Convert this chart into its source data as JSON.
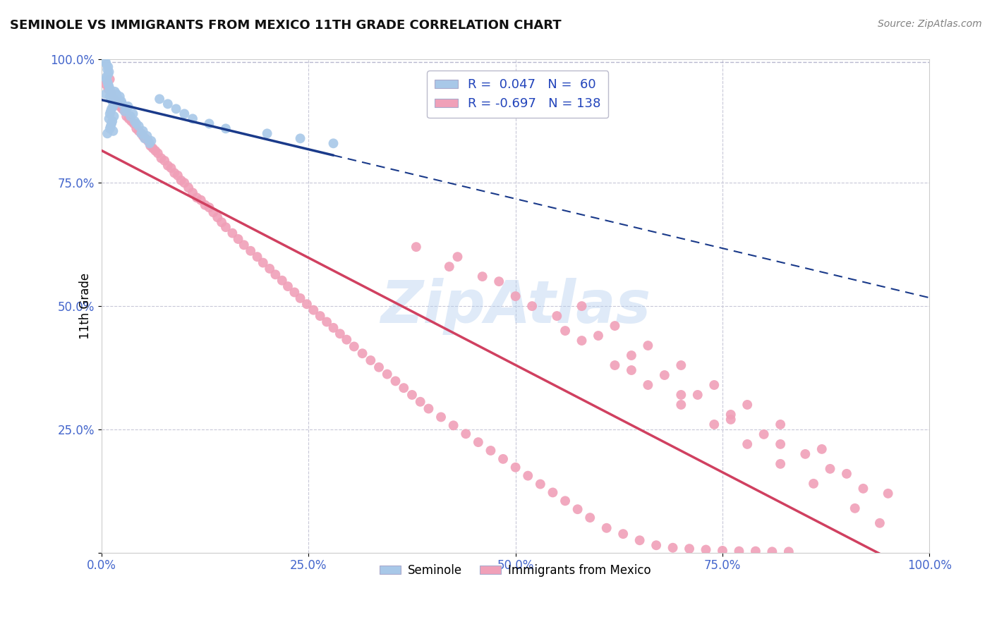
{
  "title": "SEMINOLE VS IMMIGRANTS FROM MEXICO 11TH GRADE CORRELATION CHART",
  "source": "Source: ZipAtlas.com",
  "ylabel": "11th Grade",
  "xlim": [
    0,
    1
  ],
  "ylim": [
    0,
    1
  ],
  "xticks": [
    0.0,
    0.25,
    0.5,
    0.75,
    1.0
  ],
  "xtick_labels": [
    "0.0%",
    "25.0%",
    "50.0%",
    "75.0%",
    "100.0%"
  ],
  "yticks": [
    0.0,
    0.25,
    0.5,
    0.75,
    1.0
  ],
  "ytick_labels": [
    "",
    "25.0%",
    "50.0%",
    "75.0%",
    "100.0%"
  ],
  "legend_line1": "R =  0.047   N =  60",
  "legend_line2": "R = -0.697   N = 138",
  "seminole_color": "#a8c8e8",
  "mexico_color": "#f0a0b8",
  "blue_line_color": "#1a3a8a",
  "pink_line_color": "#d04060",
  "background_color": "#ffffff",
  "grid_color": "#c8c8d8",
  "title_color": "#111111",
  "axis_tick_color": "#4466cc",
  "watermark_color": "#b0ccee",
  "seminole_x": [
    0.005,
    0.008,
    0.01,
    0.012,
    0.015,
    0.006,
    0.009,
    0.011,
    0.013,
    0.007,
    0.01,
    0.014,
    0.008,
    0.006,
    0.012,
    0.009,
    0.011,
    0.015,
    0.007,
    0.01,
    0.013,
    0.008,
    0.005,
    0.012,
    0.009,
    0.006,
    0.011,
    0.014,
    0.01,
    0.007,
    0.02,
    0.025,
    0.03,
    0.018,
    0.022,
    0.028,
    0.035,
    0.04,
    0.045,
    0.05,
    0.055,
    0.06,
    0.038,
    0.032,
    0.048,
    0.016,
    0.024,
    0.042,
    0.052,
    0.058,
    0.07,
    0.08,
    0.09,
    0.1,
    0.11,
    0.13,
    0.15,
    0.2,
    0.24,
    0.28
  ],
  "seminole_y": [
    0.93,
    0.95,
    0.94,
    0.92,
    0.91,
    0.96,
    0.945,
    0.935,
    0.915,
    0.955,
    0.925,
    0.905,
    0.97,
    0.965,
    0.9,
    0.975,
    0.895,
    0.885,
    0.98,
    0.89,
    0.875,
    0.985,
    0.995,
    0.87,
    0.88,
    0.99,
    0.865,
    0.855,
    0.86,
    0.85,
    0.92,
    0.91,
    0.9,
    0.93,
    0.925,
    0.895,
    0.885,
    0.875,
    0.865,
    0.855,
    0.845,
    0.835,
    0.89,
    0.905,
    0.85,
    0.935,
    0.915,
    0.87,
    0.84,
    0.83,
    0.92,
    0.91,
    0.9,
    0.89,
    0.88,
    0.87,
    0.86,
    0.85,
    0.84,
    0.83
  ],
  "mexico_x": [
    0.005,
    0.008,
    0.01,
    0.012,
    0.015,
    0.018,
    0.02,
    0.022,
    0.025,
    0.028,
    0.03,
    0.033,
    0.036,
    0.039,
    0.042,
    0.045,
    0.048,
    0.05,
    0.053,
    0.056,
    0.059,
    0.062,
    0.065,
    0.068,
    0.072,
    0.076,
    0.08,
    0.084,
    0.088,
    0.092,
    0.096,
    0.1,
    0.105,
    0.11,
    0.115,
    0.12,
    0.125,
    0.13,
    0.135,
    0.14,
    0.145,
    0.15,
    0.158,
    0.165,
    0.172,
    0.18,
    0.188,
    0.195,
    0.203,
    0.21,
    0.218,
    0.225,
    0.233,
    0.24,
    0.248,
    0.256,
    0.264,
    0.272,
    0.28,
    0.288,
    0.296,
    0.305,
    0.315,
    0.325,
    0.335,
    0.345,
    0.355,
    0.365,
    0.375,
    0.385,
    0.395,
    0.41,
    0.425,
    0.44,
    0.455,
    0.47,
    0.485,
    0.5,
    0.515,
    0.53,
    0.545,
    0.56,
    0.575,
    0.59,
    0.61,
    0.63,
    0.65,
    0.67,
    0.69,
    0.71,
    0.73,
    0.75,
    0.77,
    0.79,
    0.81,
    0.83,
    0.5,
    0.42,
    0.38,
    0.46,
    0.55,
    0.6,
    0.64,
    0.68,
    0.72,
    0.76,
    0.8,
    0.85,
    0.9,
    0.95,
    0.43,
    0.48,
    0.52,
    0.56,
    0.62,
    0.66,
    0.7,
    0.74,
    0.78,
    0.82,
    0.86,
    0.91,
    0.94,
    0.58,
    0.64,
    0.7,
    0.76,
    0.82,
    0.88,
    0.92,
    0.58,
    0.62,
    0.66,
    0.7,
    0.74,
    0.78,
    0.82,
    0.87
  ],
  "mexico_y": [
    0.95,
    0.94,
    0.96,
    0.93,
    0.92,
    0.915,
    0.91,
    0.905,
    0.9,
    0.895,
    0.885,
    0.88,
    0.875,
    0.87,
    0.86,
    0.855,
    0.85,
    0.845,
    0.84,
    0.835,
    0.825,
    0.82,
    0.815,
    0.81,
    0.8,
    0.795,
    0.785,
    0.78,
    0.77,
    0.765,
    0.755,
    0.75,
    0.74,
    0.73,
    0.72,
    0.715,
    0.705,
    0.7,
    0.69,
    0.68,
    0.67,
    0.66,
    0.648,
    0.636,
    0.624,
    0.612,
    0.6,
    0.588,
    0.576,
    0.564,
    0.552,
    0.54,
    0.528,
    0.516,
    0.504,
    0.492,
    0.48,
    0.468,
    0.456,
    0.444,
    0.432,
    0.418,
    0.404,
    0.39,
    0.376,
    0.362,
    0.348,
    0.334,
    0.32,
    0.306,
    0.292,
    0.275,
    0.258,
    0.241,
    0.224,
    0.207,
    0.19,
    0.173,
    0.156,
    0.139,
    0.122,
    0.105,
    0.088,
    0.071,
    0.05,
    0.038,
    0.025,
    0.015,
    0.01,
    0.008,
    0.006,
    0.004,
    0.003,
    0.003,
    0.002,
    0.002,
    0.52,
    0.58,
    0.62,
    0.56,
    0.48,
    0.44,
    0.4,
    0.36,
    0.32,
    0.28,
    0.24,
    0.2,
    0.16,
    0.12,
    0.6,
    0.55,
    0.5,
    0.45,
    0.38,
    0.34,
    0.3,
    0.26,
    0.22,
    0.18,
    0.14,
    0.09,
    0.06,
    0.43,
    0.37,
    0.32,
    0.27,
    0.22,
    0.17,
    0.13,
    0.5,
    0.46,
    0.42,
    0.38,
    0.34,
    0.3,
    0.26,
    0.21
  ]
}
